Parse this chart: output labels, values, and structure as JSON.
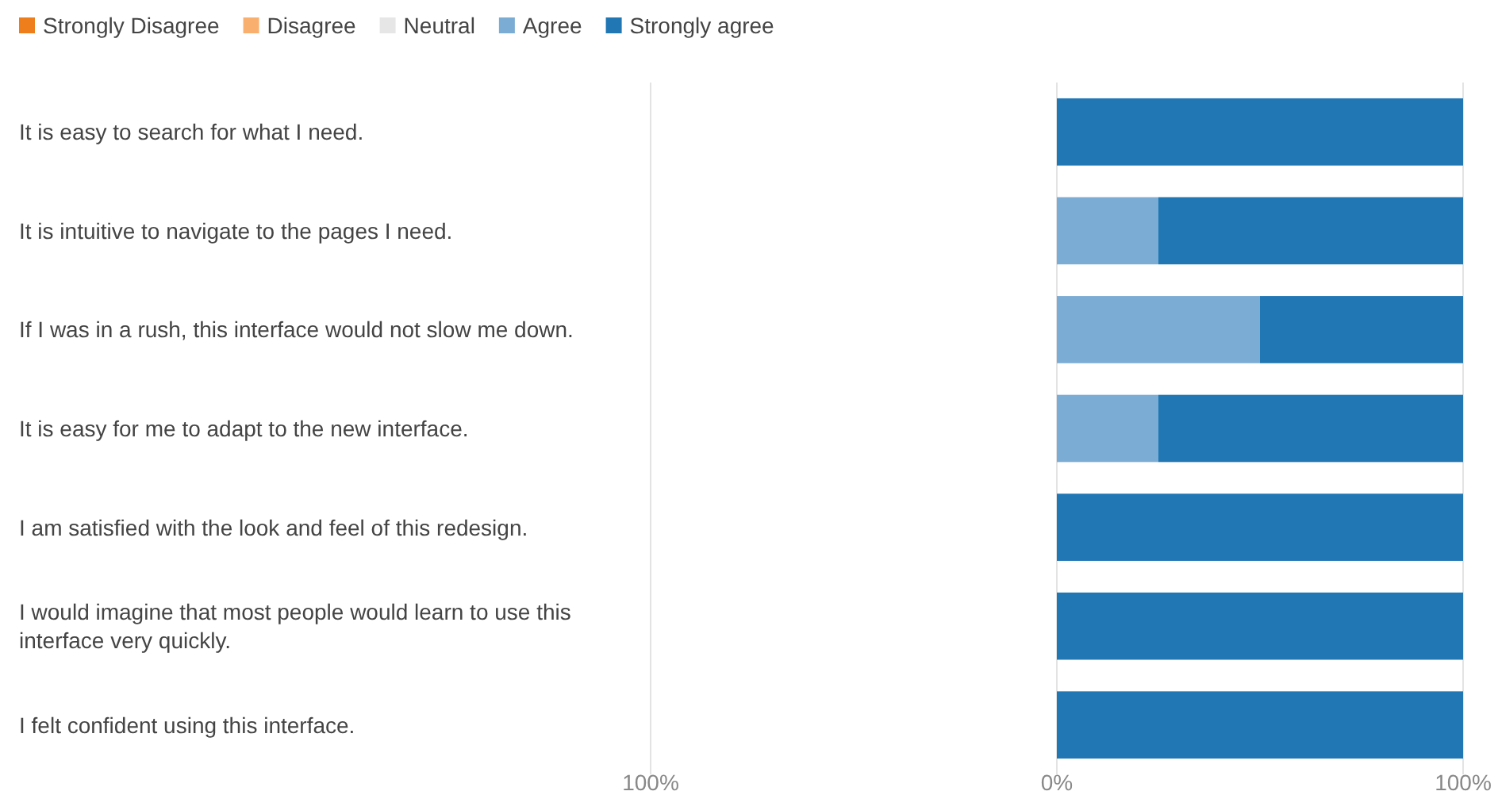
{
  "chart_data": {
    "type": "bar",
    "orientation": "horizontal",
    "stacked": true,
    "categories": [
      "It is easy to search for what I need.",
      "It is intuitive to navigate to the pages I need.",
      "If I was in a rush, this interface would not slow me down.",
      "It is easy for me to adapt to the new interface.",
      "I am satisfied with the look and feel of this redesign.",
      "I would imagine that most people would learn to use this interface very quickly.",
      "I felt confident using this interface."
    ],
    "series": [
      {
        "name": "Strongly Disagree",
        "color": "#ee7d1b",
        "values": [
          0,
          0,
          0,
          0,
          0,
          0,
          0
        ]
      },
      {
        "name": "Disagree",
        "color": "#f9b06f",
        "values": [
          0,
          0,
          0,
          0,
          0,
          0,
          0
        ]
      },
      {
        "name": "Neutral",
        "color": "#e6e6e6",
        "values": [
          0,
          0,
          0,
          0,
          0,
          0,
          0
        ]
      },
      {
        "name": "Agree",
        "color": "#7bacd4",
        "values": [
          0,
          25,
          50,
          25,
          0,
          0,
          0
        ]
      },
      {
        "name": "Strongly agree",
        "color": "#2077b4",
        "values": [
          100,
          75,
          50,
          75,
          100,
          100,
          100
        ]
      }
    ],
    "xlim": [
      -100,
      100
    ],
    "xticks": [
      {
        "value": -100,
        "label": "100%"
      },
      {
        "value": 0,
        "label": "0%"
      },
      {
        "value": 100,
        "label": "100%"
      }
    ],
    "grid": "x",
    "legend": "top left"
  }
}
